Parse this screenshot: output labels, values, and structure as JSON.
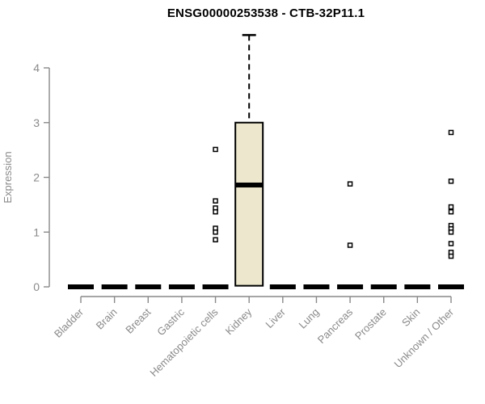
{
  "chart_data": {
    "type": "boxplot",
    "title": "ENSG00000253538 - CTB-32P11.1",
    "ylabel": "Expression",
    "xlabel": "",
    "ylim": [
      0,
      4.65
    ],
    "yticks": [
      0,
      1,
      2,
      3,
      4
    ],
    "grid": false,
    "legend": "none",
    "categories": [
      "Bladder",
      "Brain",
      "Breast",
      "Gastric",
      "Hematopoietic cells",
      "Kidney",
      "Liver",
      "Lung",
      "Pancreas",
      "Prostate",
      "Skin",
      "Unknown / Other"
    ],
    "boxes": [
      {
        "category": "Bladder",
        "q1": 0,
        "median": 0,
        "q3": 0,
        "whisker_low": 0,
        "whisker_high": 0,
        "outliers": []
      },
      {
        "category": "Brain",
        "q1": 0,
        "median": 0,
        "q3": 0,
        "whisker_low": 0,
        "whisker_high": 0,
        "outliers": []
      },
      {
        "category": "Breast",
        "q1": 0,
        "median": 0,
        "q3": 0,
        "whisker_low": 0,
        "whisker_high": 0,
        "outliers": []
      },
      {
        "category": "Gastric",
        "q1": 0,
        "median": 0,
        "q3": 0,
        "whisker_low": 0,
        "whisker_high": 0,
        "outliers": []
      },
      {
        "category": "Hematopoietic cells",
        "q1": 0,
        "median": 0,
        "q3": 0,
        "whisker_low": 0,
        "whisker_high": 0,
        "outliers": [
          2.51,
          1.57,
          1.44,
          1.37,
          1.07,
          1.0,
          0.86
        ]
      },
      {
        "category": "Kidney",
        "q1": 0.02,
        "median": 1.86,
        "q3": 3.0,
        "whisker_low": 0,
        "whisker_high": 4.6,
        "outliers": []
      },
      {
        "category": "Liver",
        "q1": 0,
        "median": 0,
        "q3": 0,
        "whisker_low": 0,
        "whisker_high": 0,
        "outliers": []
      },
      {
        "category": "Lung",
        "q1": 0,
        "median": 0,
        "q3": 0,
        "whisker_low": 0,
        "whisker_high": 0,
        "outliers": []
      },
      {
        "category": "Pancreas",
        "q1": 0,
        "median": 0,
        "q3": 0,
        "whisker_low": 0,
        "whisker_high": 0,
        "outliers": [
          1.88,
          0.76
        ]
      },
      {
        "category": "Prostate",
        "q1": 0,
        "median": 0,
        "q3": 0,
        "whisker_low": 0,
        "whisker_high": 0,
        "outliers": []
      },
      {
        "category": "Skin",
        "q1": 0,
        "median": 0,
        "q3": 0,
        "whisker_low": 0,
        "whisker_high": 0,
        "outliers": []
      },
      {
        "category": "Unknown / Other",
        "q1": 0,
        "median": 0,
        "q3": 0,
        "whisker_low": 0,
        "whisker_high": 0,
        "outliers": [
          2.82,
          1.93,
          1.46,
          1.37,
          1.12,
          1.06,
          1.0,
          0.79,
          0.63,
          0.56
        ]
      }
    ],
    "colors": {
      "box_fill": "#ece7cd",
      "box_stroke": "#000000",
      "median": "#000000",
      "axis": "#898989",
      "tick_text": "#8a8a8a",
      "axis_label_text": "#8a8a8a",
      "title_text": "#000000",
      "outlier_stroke": "#000000",
      "outlier_fill": "#ffffff",
      "background": "#ffffff"
    }
  }
}
